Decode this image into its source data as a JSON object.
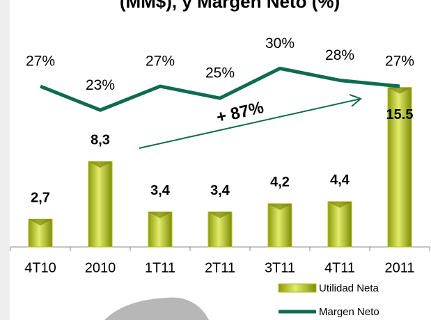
{
  "chart_data": {
    "type": "bar",
    "title": "(MM$), y Margen Neto (%)",
    "categories": [
      "4T10",
      "2010",
      "1T11",
      "2T11",
      "3T11",
      "4T11",
      "2011"
    ],
    "series": [
      {
        "name": "Utilidad Neta",
        "color": "#b5c217",
        "values": [
          2.7,
          8.3,
          3.4,
          3.4,
          4.2,
          4.4,
          15.5
        ],
        "value_labels": [
          "2,7",
          "8,3",
          "3,4",
          "3,4",
          "4,2",
          "4,4",
          "15.5"
        ]
      },
      {
        "name": "Margen Neto",
        "color": "#0f6b50",
        "type": "line",
        "axis": "y2",
        "values": [
          27,
          23,
          27,
          25,
          30,
          28,
          27
        ]
      }
    ],
    "annotation": "+ 87%",
    "ylim": [
      0,
      24
    ],
    "y2lim": [
      0,
      41.5
    ],
    "legend": "bottom-right"
  }
}
